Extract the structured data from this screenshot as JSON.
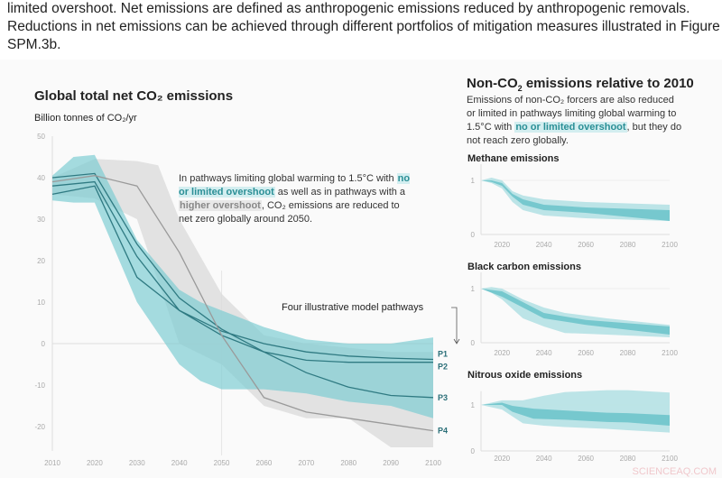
{
  "intro_text": "limited overshoot. Net emissions are defined as anthropogenic emissions reduced by anthropogenic removals. Reductions in net emissions can be achieved through different portfolios of mitigation measures illustrated in Figure SPM.3b.",
  "colors": {
    "teal_band": "#7fcdd3",
    "teal_dark": "#5bb5bc",
    "teal_line": "#2f7a82",
    "grey_band": "#dcdcdc",
    "grey_line": "#9a9a9a",
    "highlight_teal": "#d3eef0"
  },
  "chart_data": [
    {
      "type": "area",
      "title": "Global total net CO₂ emissions",
      "ylabel": "Billion tonnes of CO₂/yr",
      "xlim": [
        2010,
        2100
      ],
      "ylim": [
        -25,
        50
      ],
      "xticks": [
        2010,
        2020,
        2030,
        2040,
        2050,
        2060,
        2070,
        2080,
        2090,
        2100
      ],
      "yticks": [
        50,
        40,
        30,
        20,
        10,
        0,
        -10,
        -20
      ],
      "annotation": {
        "pre": "In pathways limiting global warming to 1.5°C with ",
        "hl1": "no or limited overshoot",
        "mid": " as well as in pathways with a ",
        "hl2": "higher overshoot",
        "post": ", CO₂ emissions are reduced to net zero globally around 2050."
      },
      "pathways_label": "Four illustrative model pathways",
      "bands": [
        {
          "name": "higher overshoot",
          "color": "grey",
          "x": [
            2010,
            2020,
            2030,
            2035,
            2040,
            2050,
            2060,
            2070,
            2080,
            2090,
            2100
          ],
          "upper": [
            40,
            44.5,
            44,
            43,
            30,
            12,
            2,
            0,
            -1,
            -2,
            -2
          ],
          "lower": [
            36,
            35,
            30,
            15,
            0,
            -5,
            -15,
            -18,
            -18,
            -25,
            -25
          ]
        },
        {
          "name": "no or limited overshoot",
          "color": "teal",
          "x": [
            2010,
            2015,
            2020,
            2030,
            2040,
            2045,
            2050,
            2060,
            2070,
            2080,
            2090,
            2100
          ],
          "upper": [
            40.5,
            45,
            45.5,
            25,
            13,
            10,
            8,
            4,
            1,
            0,
            0,
            1.5
          ],
          "lower": [
            34.5,
            34,
            34,
            10,
            -5,
            -9,
            -11,
            -11,
            -12,
            -14,
            -15,
            -18
          ]
        }
      ],
      "series": [
        {
          "name": "P1",
          "x": [
            2010,
            2020,
            2030,
            2040,
            2050,
            2060,
            2070,
            2080,
            2090,
            2100
          ],
          "values": [
            36,
            38,
            16,
            8,
            3,
            0,
            -2,
            -3,
            -3.5,
            -3.8
          ]
        },
        {
          "name": "P2",
          "x": [
            2010,
            2020,
            2030,
            2040,
            2050,
            2060,
            2070,
            2080,
            2090,
            2100
          ],
          "values": [
            38,
            39,
            21,
            8,
            2,
            -2,
            -4,
            -4.5,
            -4.5,
            -4.5
          ]
        },
        {
          "name": "P3",
          "x": [
            2010,
            2020,
            2030,
            2040,
            2050,
            2060,
            2070,
            2080,
            2090,
            2100
          ],
          "values": [
            40,
            41,
            24,
            11,
            3.5,
            -2,
            -7,
            -10.5,
            -12.5,
            -13
          ]
        },
        {
          "name": "P4",
          "x": [
            2010,
            2020,
            2030,
            2040,
            2050,
            2060,
            2070,
            2080,
            2090,
            2100
          ],
          "values": [
            39,
            40.5,
            38,
            22,
            2,
            -13,
            -16.5,
            -18,
            -19.5,
            -21
          ]
        }
      ]
    },
    {
      "type": "area",
      "title": "Methane emissions",
      "xlim": [
        2010,
        2100
      ],
      "ylim": [
        0,
        1
      ],
      "xticks": [
        2020,
        2040,
        2060,
        2080,
        2100
      ],
      "yticks": [
        1,
        0
      ],
      "outer": {
        "x": [
          2010,
          2015,
          2020,
          2025,
          2030,
          2040,
          2060,
          2100
        ],
        "upper": [
          1,
          1.05,
          1,
          0.8,
          0.72,
          0.65,
          0.6,
          0.55
        ],
        "lower": [
          1,
          0.95,
          0.85,
          0.6,
          0.45,
          0.35,
          0.3,
          0.25
        ]
      },
      "inner": {
        "x": [
          2010,
          2015,
          2020,
          2025,
          2030,
          2040,
          2060,
          2100
        ],
        "upper": [
          1,
          1,
          0.95,
          0.75,
          0.65,
          0.55,
          0.5,
          0.45
        ],
        "lower": [
          1,
          0.97,
          0.9,
          0.7,
          0.55,
          0.45,
          0.4,
          0.25
        ]
      }
    },
    {
      "type": "area",
      "title": "Black carbon emissions",
      "xlim": [
        2010,
        2100
      ],
      "ylim": [
        0,
        1
      ],
      "xticks": [
        2020,
        2040,
        2060,
        2080,
        2100
      ],
      "yticks": [
        1,
        0
      ],
      "outer": {
        "x": [
          2010,
          2015,
          2020,
          2030,
          2040,
          2050,
          2070,
          2100
        ],
        "upper": [
          1,
          1.03,
          1,
          0.8,
          0.65,
          0.55,
          0.45,
          0.33
        ],
        "lower": [
          1,
          0.92,
          0.8,
          0.45,
          0.3,
          0.18,
          0.15,
          0.1
        ]
      },
      "inner": {
        "x": [
          2010,
          2020,
          2030,
          2040,
          2060,
          2100
        ],
        "upper": [
          1,
          0.95,
          0.75,
          0.55,
          0.42,
          0.3
        ],
        "lower": [
          1,
          0.85,
          0.65,
          0.45,
          0.33,
          0.15
        ]
      }
    },
    {
      "type": "area",
      "title": "Nitrous oxide emissions",
      "xlim": [
        2010,
        2100
      ],
      "ylim": [
        0,
        1
      ],
      "xticks": [
        2020,
        2040,
        2060,
        2080,
        2100
      ],
      "yticks": [
        1,
        0
      ],
      "outer": {
        "x": [
          2010,
          2020,
          2030,
          2040,
          2050,
          2070,
          2080,
          2100
        ],
        "upper": [
          1,
          1.1,
          1.1,
          1.2,
          1.28,
          1.32,
          1.32,
          1.27
        ],
        "lower": [
          1,
          0.9,
          0.6,
          0.55,
          0.52,
          0.48,
          0.45,
          0.4
        ]
      },
      "inner": {
        "x": [
          2010,
          2020,
          2025,
          2035,
          2050,
          2070,
          2080,
          2100
        ],
        "upper": [
          1,
          1.05,
          0.98,
          0.92,
          0.88,
          0.83,
          0.82,
          0.78
        ],
        "lower": [
          1,
          1,
          0.85,
          0.7,
          0.68,
          0.63,
          0.62,
          0.55
        ]
      }
    }
  ],
  "nonco2": {
    "title_pre": "Non-CO",
    "title_sub": "2",
    "title_post": " emissions relative to 2010",
    "text_pre": "Emissions of non-CO₂ forcers are also reduced or limited in pathways limiting global warming to 1.5°C with ",
    "text_hl": "no or limited overshoot",
    "text_post": ", but they do not reach zero globally."
  },
  "watermark": "SCIENCEAQ.COM"
}
